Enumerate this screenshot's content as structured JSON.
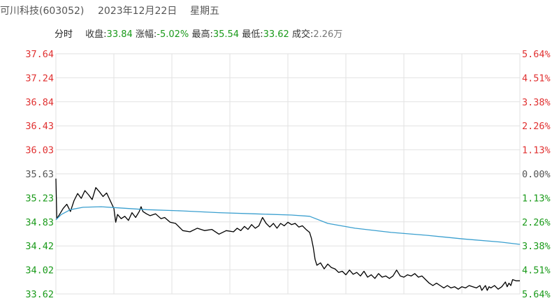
{
  "header": {
    "stock": "可川科技(603052)",
    "date": "2023年12月22日",
    "weekday": "星期五"
  },
  "stats": {
    "mode": "分时",
    "close_label": "收盘:",
    "close_value": "33.84",
    "change_label": "涨幅:",
    "change_value": "-5.02%",
    "high_label": "最高:",
    "high_value": "35.54",
    "low_label": "最低:",
    "low_value": "33.62",
    "volume_label": "成交:",
    "volume_value": "2.26万"
  },
  "colors": {
    "price_line": "#000000",
    "avg_line": "#3a9fcf",
    "up": "#e03030",
    "down": "#1a9a1a",
    "grid": "#e2e2e2"
  },
  "chart_data": {
    "type": "line",
    "x_unit": "trading minute (0-240)",
    "ylim": [
      33.62,
      37.64
    ],
    "left_ticks": [
      "37.64",
      "37.24",
      "36.84",
      "36.43",
      "36.03",
      "35.63",
      "35.23",
      "34.83",
      "34.42",
      "34.02",
      "33.62"
    ],
    "right_ticks": [
      "5.64%",
      "4.51%",
      "3.38%",
      "2.26%",
      "1.13%",
      "0.00%",
      "1.13%",
      "2.26%",
      "3.38%",
      "4.51%",
      "5.64%"
    ],
    "series": [
      {
        "name": "price",
        "points": [
          [
            0,
            35.55
          ],
          [
            0.5,
            34.88
          ],
          [
            2,
            34.95
          ],
          [
            4,
            35.05
          ],
          [
            6,
            35.12
          ],
          [
            8,
            35.0
          ],
          [
            10,
            35.18
          ],
          [
            12,
            35.3
          ],
          [
            14,
            35.22
          ],
          [
            16,
            35.35
          ],
          [
            18,
            35.28
          ],
          [
            20,
            35.2
          ],
          [
            22,
            35.4
          ],
          [
            24,
            35.33
          ],
          [
            26,
            35.25
          ],
          [
            28,
            35.31
          ],
          [
            30,
            35.18
          ],
          [
            32,
            35.05
          ],
          [
            33,
            34.82
          ],
          [
            34,
            34.95
          ],
          [
            36,
            34.88
          ],
          [
            38,
            34.92
          ],
          [
            40,
            34.85
          ],
          [
            42,
            34.98
          ],
          [
            44,
            34.9
          ],
          [
            46,
            35.0
          ],
          [
            47,
            35.08
          ],
          [
            48,
            35.0
          ],
          [
            50,
            34.96
          ],
          [
            52,
            34.93
          ],
          [
            55,
            34.96
          ],
          [
            58,
            34.88
          ],
          [
            60,
            34.9
          ],
          [
            63,
            34.82
          ],
          [
            66,
            34.8
          ],
          [
            70,
            34.68
          ],
          [
            74,
            34.66
          ],
          [
            78,
            34.72
          ],
          [
            82,
            34.68
          ],
          [
            86,
            34.7
          ],
          [
            90,
            34.62
          ],
          [
            94,
            34.68
          ],
          [
            98,
            34.66
          ],
          [
            100,
            34.72
          ],
          [
            102,
            34.68
          ],
          [
            104,
            34.75
          ],
          [
            106,
            34.7
          ],
          [
            108,
            34.78
          ],
          [
            110,
            34.72
          ],
          [
            112,
            34.76
          ],
          [
            114,
            34.9
          ],
          [
            116,
            34.8
          ],
          [
            118,
            34.74
          ],
          [
            120,
            34.8
          ],
          [
            122,
            34.72
          ],
          [
            124,
            34.8
          ],
          [
            126,
            34.76
          ],
          [
            128,
            34.82
          ],
          [
            130,
            34.78
          ],
          [
            132,
            34.8
          ],
          [
            134,
            34.74
          ],
          [
            136,
            34.76
          ],
          [
            138,
            34.7
          ],
          [
            140,
            34.65
          ],
          [
            141,
            34.55
          ],
          [
            142,
            34.4
          ],
          [
            143,
            34.2
          ],
          [
            144,
            34.1
          ],
          [
            146,
            34.14
          ],
          [
            148,
            34.04
          ],
          [
            150,
            34.12
          ],
          [
            152,
            34.06
          ],
          [
            154,
            34.04
          ],
          [
            156,
            33.98
          ],
          [
            158,
            34.0
          ],
          [
            160,
            33.94
          ],
          [
            162,
            34.02
          ],
          [
            164,
            33.95
          ],
          [
            166,
            33.98
          ],
          [
            168,
            33.92
          ],
          [
            170,
            34.0
          ],
          [
            172,
            33.9
          ],
          [
            174,
            33.94
          ],
          [
            176,
            33.88
          ],
          [
            178,
            33.96
          ],
          [
            180,
            33.9
          ],
          [
            182,
            33.92
          ],
          [
            184,
            33.88
          ],
          [
            186,
            33.92
          ],
          [
            188,
            34.02
          ],
          [
            190,
            33.92
          ],
          [
            192,
            33.9
          ],
          [
            194,
            33.94
          ],
          [
            196,
            33.92
          ],
          [
            198,
            33.96
          ],
          [
            200,
            33.9
          ],
          [
            202,
            33.92
          ],
          [
            204,
            33.86
          ],
          [
            206,
            33.8
          ],
          [
            208,
            33.76
          ],
          [
            210,
            33.8
          ],
          [
            212,
            33.76
          ],
          [
            214,
            33.72
          ],
          [
            216,
            33.76
          ],
          [
            218,
            33.72
          ],
          [
            220,
            33.74
          ],
          [
            222,
            33.7
          ],
          [
            224,
            33.74
          ],
          [
            226,
            33.72
          ],
          [
            228,
            33.76
          ],
          [
            230,
            33.74
          ],
          [
            232,
            33.72
          ],
          [
            234,
            33.76
          ],
          [
            235,
            33.68
          ],
          [
            236,
            33.72
          ],
          [
            237,
            33.76
          ],
          [
            238,
            33.68
          ],
          [
            239,
            33.74
          ],
          [
            240,
            33.72
          ],
          [
            242,
            33.76
          ],
          [
            244,
            33.7
          ],
          [
            246,
            33.74
          ],
          [
            248,
            33.82
          ],
          [
            249,
            33.74
          ],
          [
            250,
            33.8
          ],
          [
            251,
            33.76
          ],
          [
            252,
            33.86
          ],
          [
            254,
            33.84
          ],
          [
            256,
            33.84
          ]
        ]
      },
      {
        "name": "avg",
        "points": [
          [
            0,
            34.86
          ],
          [
            3,
            34.95
          ],
          [
            8,
            35.03
          ],
          [
            15,
            35.07
          ],
          [
            25,
            35.08
          ],
          [
            35,
            35.06
          ],
          [
            50,
            35.03
          ],
          [
            70,
            35.01
          ],
          [
            90,
            34.98
          ],
          [
            110,
            34.96
          ],
          [
            130,
            34.94
          ],
          [
            140,
            34.92
          ],
          [
            150,
            34.8
          ],
          [
            165,
            34.72
          ],
          [
            185,
            34.65
          ],
          [
            205,
            34.6
          ],
          [
            225,
            34.54
          ],
          [
            245,
            34.49
          ],
          [
            256,
            34.45
          ]
        ]
      }
    ]
  }
}
